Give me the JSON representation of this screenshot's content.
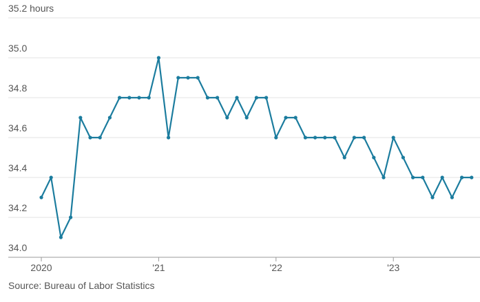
{
  "chart_data": {
    "type": "line",
    "categories": [
      "2020",
      null,
      null,
      null,
      null,
      null,
      null,
      null,
      null,
      null,
      null,
      null,
      "'21",
      null,
      null,
      null,
      null,
      null,
      null,
      null,
      null,
      null,
      null,
      null,
      "'22",
      null,
      null,
      null,
      null,
      null,
      null,
      null,
      null,
      null,
      null,
      null,
      "'23",
      null,
      null,
      null,
      null,
      null,
      null,
      null,
      null
    ],
    "series": [
      {
        "color": "#1b7c9e",
        "values": [
          34.3,
          34.4,
          34.1,
          34.2,
          34.7,
          34.6,
          34.6,
          34.7,
          34.8,
          34.8,
          34.8,
          34.8,
          35.0,
          34.6,
          34.9,
          34.9,
          34.9,
          34.8,
          34.8,
          34.7,
          34.8,
          34.7,
          34.8,
          34.8,
          34.6,
          34.7,
          34.7,
          34.6,
          34.6,
          34.6,
          34.6,
          34.5,
          34.6,
          34.6,
          34.5,
          34.4,
          34.6,
          34.5,
          34.4,
          34.4,
          34.3,
          34.4,
          34.3,
          34.4,
          34.4
        ]
      }
    ],
    "ylim": [
      34,
      35.2
    ],
    "yticks": [
      {
        "value": 34,
        "label": "34.0"
      },
      34.2,
      34.4,
      34.6,
      34.8,
      {
        "value": 35,
        "label": "35.0"
      },
      {
        "value": 35.2,
        "label": "35.2 hours"
      }
    ],
    "grid": true,
    "source": "Source: Bureau of Labor Statistics"
  }
}
